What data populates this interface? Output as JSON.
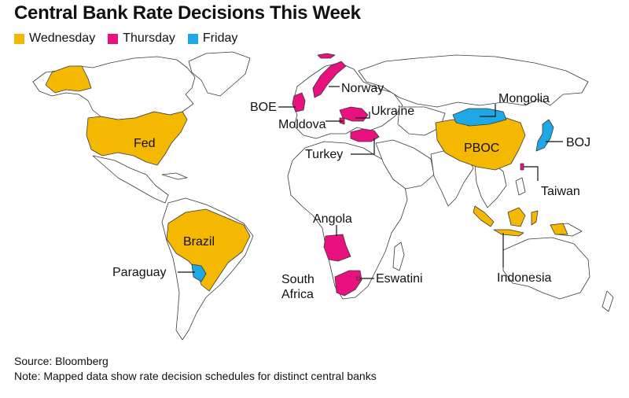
{
  "title": "Central Bank Rate Decisions This Week",
  "legend": [
    {
      "label": "Wednesday",
      "color": "#f5b800"
    },
    {
      "label": "Thursday",
      "color": "#e8117f"
    },
    {
      "label": "Friday",
      "color": "#1fa8e6"
    }
  ],
  "colors": {
    "land": "#ffffff",
    "border": "#3a3a3a",
    "leader": "#111111"
  },
  "labels": {
    "fed": "Fed",
    "brazil": "Brazil",
    "paraguay": "Paraguay",
    "boe": "BOE",
    "norway": "Norway",
    "ukraine": "Ukraine",
    "moldova": "Moldova",
    "turkey": "Turkey",
    "angola": "Angola",
    "south_africa_1": "South",
    "south_africa_2": "Africa",
    "eswatini": "Eswatini",
    "mongolia": "Mongolia",
    "pboc": "PBOC",
    "boj": "BOJ",
    "taiwan": "Taiwan",
    "indonesia": "Indonesia"
  },
  "footer": {
    "source": "Source: Bloomberg",
    "note": "Note: Mapped data show rate decision schedules for distinct central banks"
  }
}
